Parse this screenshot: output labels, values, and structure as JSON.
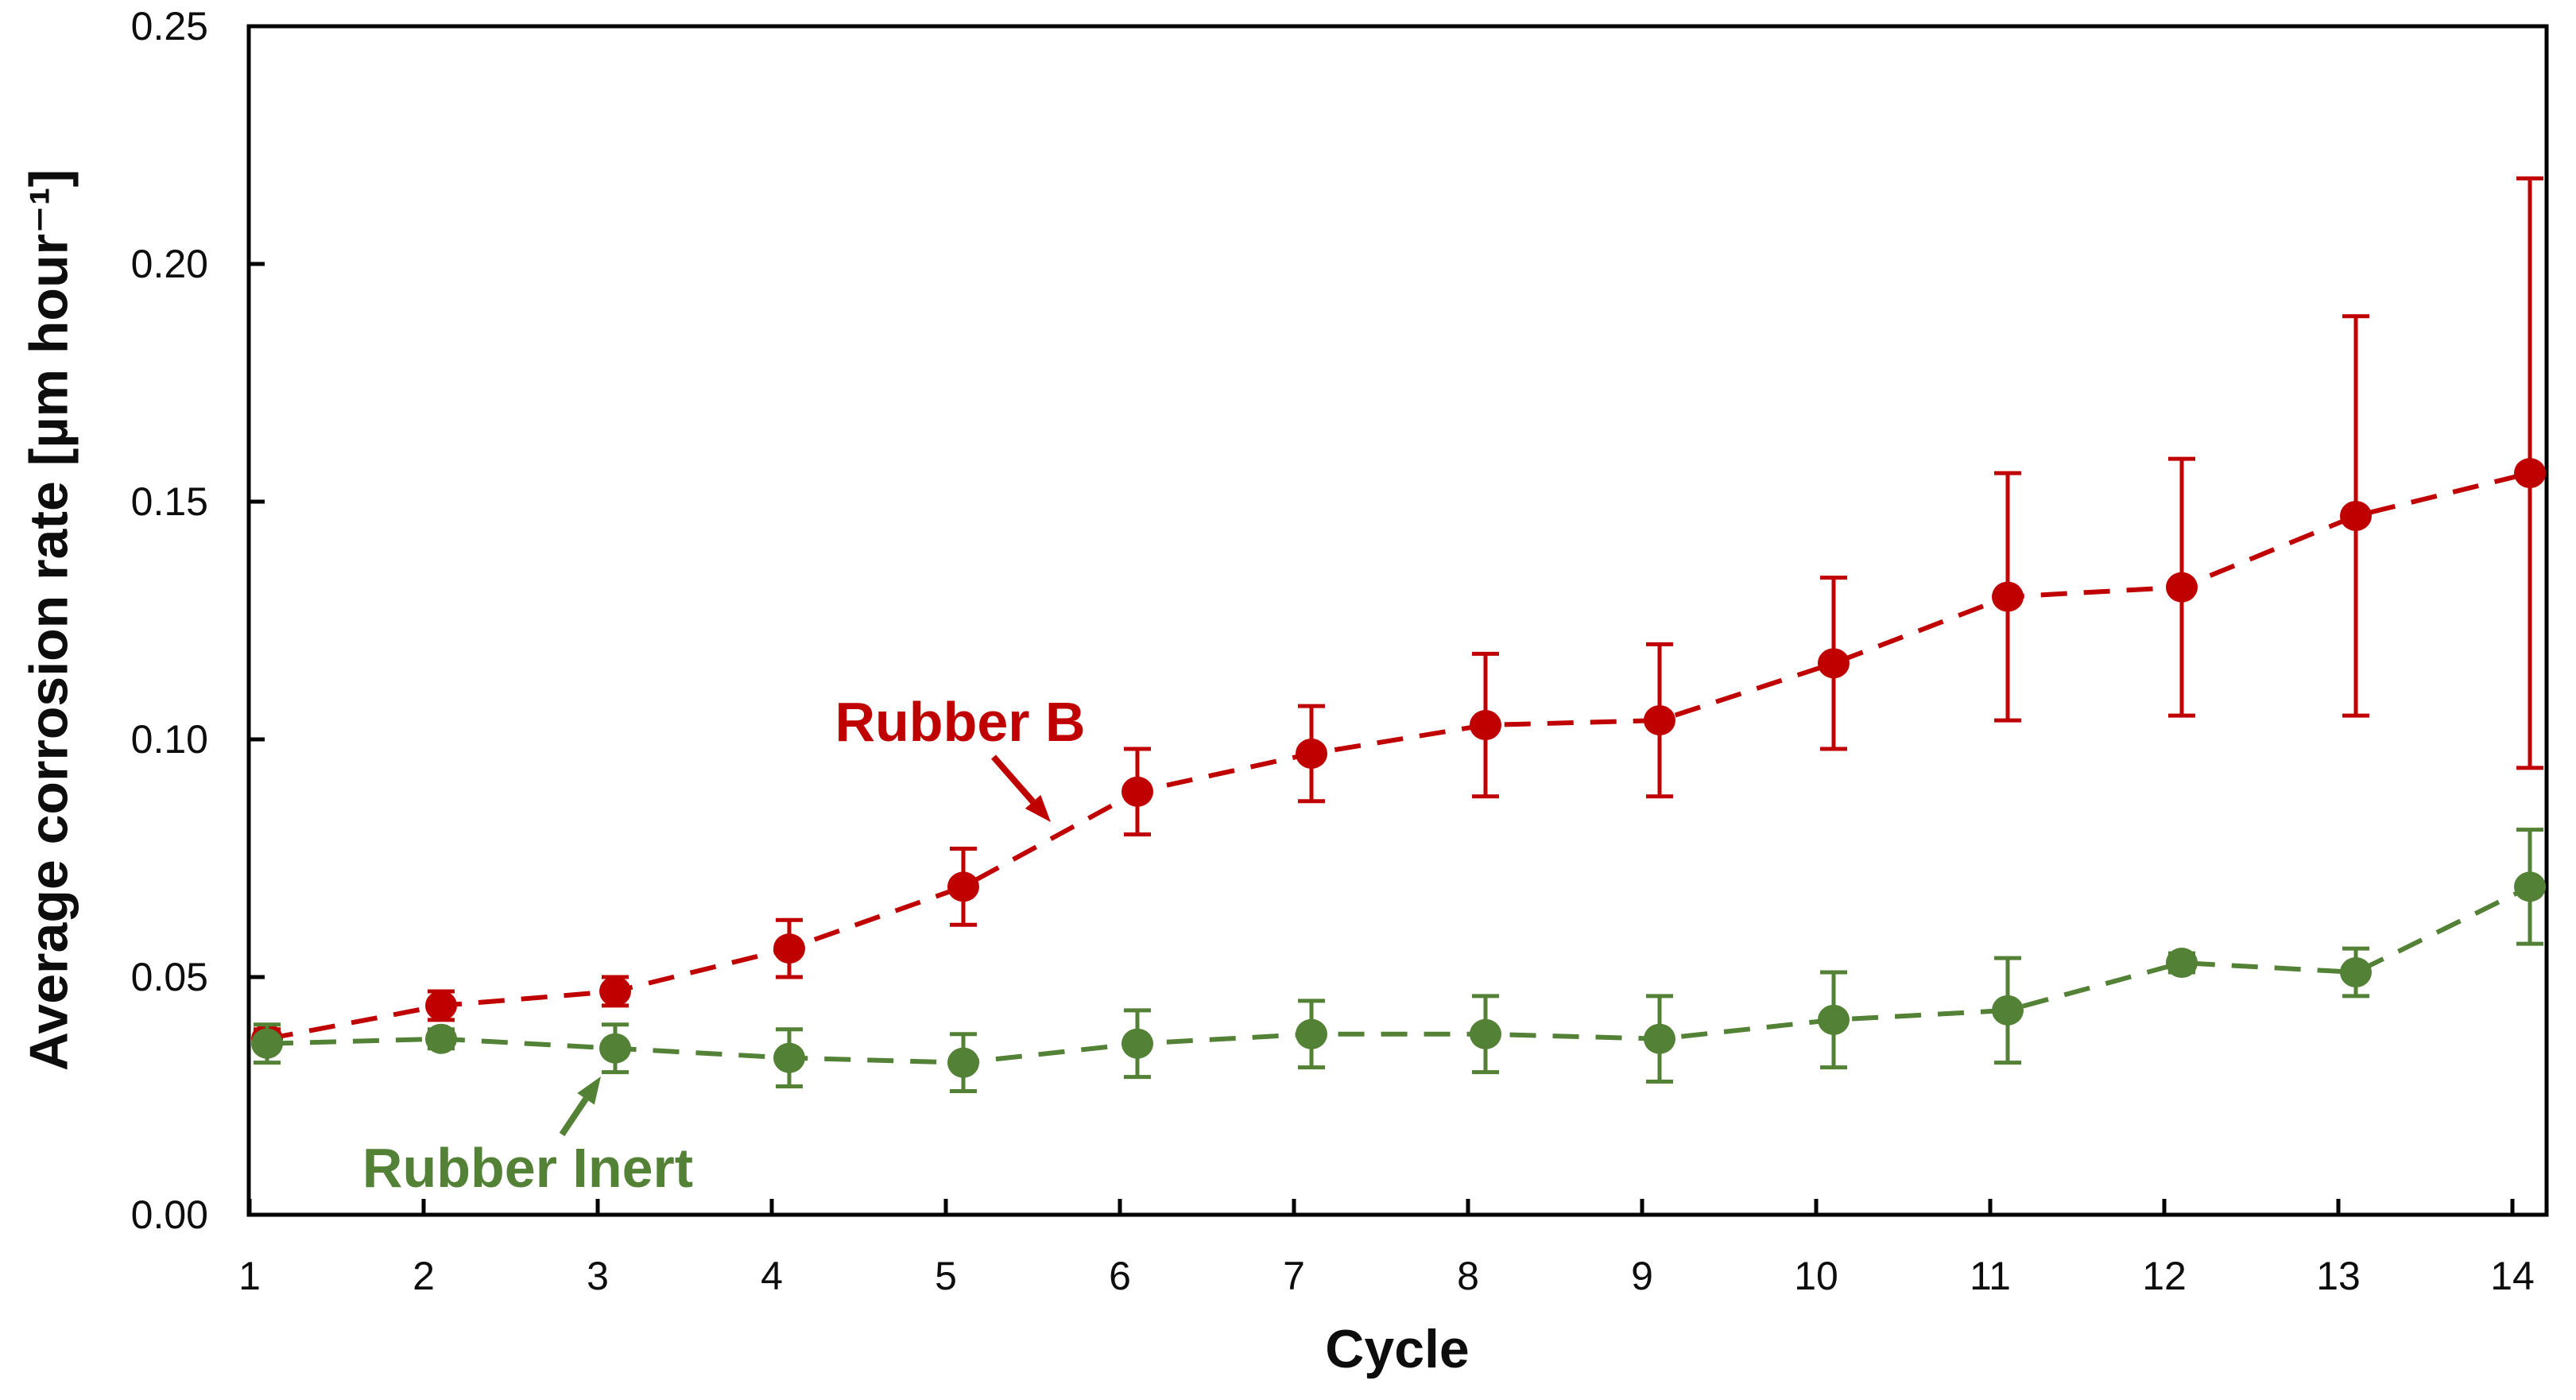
{
  "chart_data": {
    "type": "line",
    "title": "",
    "xlabel": "Cycle",
    "ylabel": "Average corrosion rate [µm hour⁻¹]",
    "x": [
      1,
      2,
      3,
      4,
      5,
      6,
      7,
      8,
      9,
      10,
      11,
      12,
      13,
      14
    ],
    "xlim": [
      1,
      14.2
    ],
    "ylim": [
      0,
      0.25
    ],
    "y_ticks": [
      0,
      0.05,
      0.1,
      0.15,
      0.2,
      0.25
    ],
    "y_tick_labels": [
      "0.00",
      "0.05",
      "0.10",
      "0.15",
      "0.20",
      "0.25"
    ],
    "grid": false,
    "legend_position": "none-inline-annotations",
    "background": "#ffffff",
    "axis_color": "#000000",
    "series": [
      {
        "name": "Rubber B",
        "color": "#C00000",
        "marker": "circle",
        "line_style": "dashed",
        "values": [
          0.037,
          0.044,
          0.047,
          0.056,
          0.069,
          0.089,
          0.097,
          0.103,
          0.104,
          0.116,
          0.13,
          0.132,
          0.147,
          0.156
        ],
        "errors": [
          0.002,
          0.003,
          0.003,
          0.006,
          0.008,
          0.009,
          0.01,
          0.015,
          0.016,
          0.018,
          0.026,
          0.027,
          0.042,
          0.062
        ]
      },
      {
        "name": "Rubber Inert",
        "color": "#538135",
        "marker": "circle",
        "line_style": "dashed",
        "values": [
          0.036,
          0.037,
          0.035,
          0.033,
          0.032,
          0.036,
          0.038,
          0.038,
          0.037,
          0.041,
          0.043,
          0.053,
          0.051,
          0.069
        ],
        "errors": [
          0.004,
          0.002,
          0.005,
          0.006,
          0.006,
          0.007,
          0.007,
          0.008,
          0.009,
          0.01,
          0.011,
          0.002,
          0.005,
          0.012
        ]
      }
    ],
    "annotations": [
      {
        "text": "Rubber B",
        "color": "#C00000"
      },
      {
        "text": "Rubber Inert",
        "color": "#538135"
      }
    ]
  }
}
